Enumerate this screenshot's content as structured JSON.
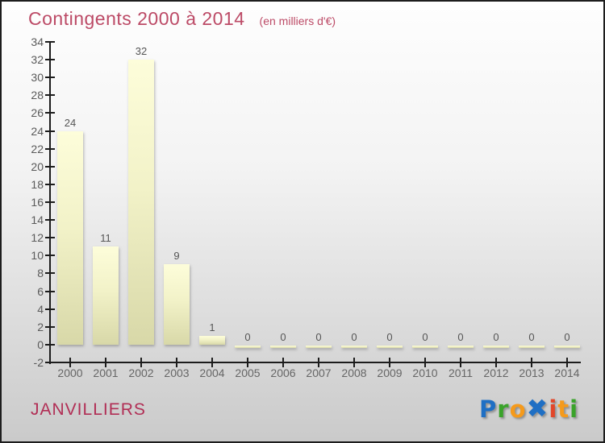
{
  "header": {
    "title": "Contingents 2000 à 2014",
    "subtitle": "(en milliers d'€)"
  },
  "footer": {
    "name": "JANVILLIERS",
    "logo": {
      "text": "Proxiti",
      "letters": [
        {
          "ch": "P",
          "color": "#1f6fc4"
        },
        {
          "ch": "r",
          "color": "#3aa32a"
        },
        {
          "ch": "o",
          "color": "#f59a1b"
        },
        {
          "ch": "x",
          "color": "#1f6fc4",
          "glyph": "✖"
        },
        {
          "ch": "i",
          "color": "#e2472a"
        },
        {
          "ch": "t",
          "color": "#f59a1b"
        },
        {
          "ch": "i",
          "color": "#3aa32a"
        }
      ]
    }
  },
  "colors": {
    "title_text": "#bc4a66",
    "footer_text": "#b12e55",
    "axis": "#1c1c1c",
    "tick_label": "#5a5a5a",
    "value_label": "#555555",
    "bar_top": "#fdfdda",
    "bar_bottom": "#d8d8a8",
    "background_top": "#fefefe",
    "background_bottom": "#cacaca"
  },
  "chart_data": {
    "type": "bar",
    "title": "Contingents 2000 à 2014",
    "subtitle": "(en milliers d'€)",
    "categories": [
      "2000",
      "2001",
      "2002",
      "2003",
      "2004",
      "2005",
      "2006",
      "2007",
      "2008",
      "2009",
      "2010",
      "2011",
      "2012",
      "2013",
      "2014"
    ],
    "values": [
      24,
      11,
      32,
      9,
      1,
      0,
      0,
      0,
      0,
      0,
      0,
      0,
      0,
      0,
      0
    ],
    "xlabel": "",
    "ylabel": "",
    "ylim": [
      -2,
      34
    ],
    "y_tick_step": 2,
    "y_ticks": [
      34,
      32,
      30,
      28,
      26,
      24,
      22,
      20,
      18,
      16,
      14,
      12,
      10,
      8,
      6,
      4,
      2,
      0,
      -2
    ],
    "grid": false,
    "legend": null,
    "value_labels_shown": true
  }
}
